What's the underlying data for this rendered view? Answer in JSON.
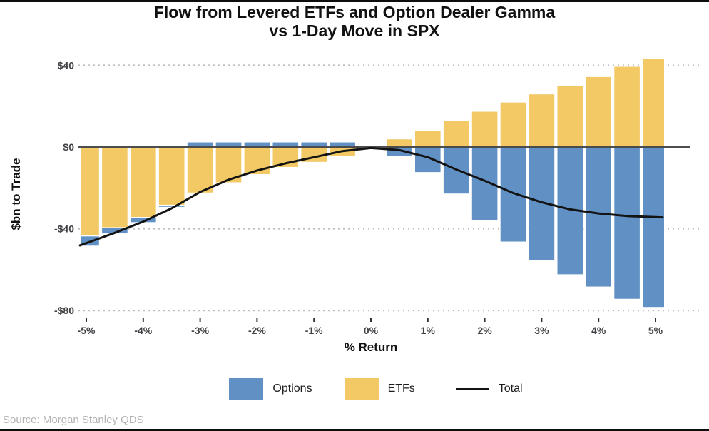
{
  "title": {
    "line1": "Flow from Levered ETFs and Option Dealer Gamma",
    "line2": "vs 1-Day Move in SPX"
  },
  "source": "Source: Morgan Stanley QDS",
  "legend": {
    "options": "Options",
    "etfs": "ETFs",
    "total": "Total"
  },
  "colors": {
    "options_blue": "#6191c4",
    "etfs_yellow": "#f2c964",
    "total_line": "#141414",
    "zero_line": "#3a3a3a",
    "grid_dotted": "#bdbdbd",
    "tick_label": "#434347",
    "source_text": "#b3b3b3"
  },
  "chart_data": {
    "type": "bar",
    "subtype": "stacked bars (Options + ETFs) with overlay line (Total)",
    "title": "Flow from Levered ETFs and Option Dealer Gamma vs 1-Day Move in SPX",
    "xlabel": "% Return",
    "ylabel": "$bn to Trade",
    "x": [
      -5,
      -4.5,
      -4,
      -3.5,
      -3,
      -2.5,
      -2,
      -1.5,
      -1,
      -0.5,
      0,
      0.5,
      1,
      1.5,
      2,
      2.5,
      3,
      3.5,
      4,
      4.5,
      5
    ],
    "series": [
      {
        "name": "Options",
        "style": "bar",
        "values": [
          -5,
          -3,
          -2.5,
          -1,
          2.5,
          2.5,
          2.5,
          2.5,
          2.5,
          2.5,
          0,
          -4.5,
          -12.5,
          -23,
          -36,
          -46.5,
          -55.5,
          -62.5,
          -68.5,
          -74.5,
          -78.5
        ]
      },
      {
        "name": "ETFs",
        "style": "bar",
        "values": [
          -43.5,
          -39.5,
          -34.5,
          -28.5,
          -22.5,
          -17.5,
          -13.5,
          -10,
          -7.5,
          -4.5,
          0,
          4,
          8,
          13,
          17.5,
          22,
          26,
          30,
          34.5,
          39.5,
          43.5
        ]
      },
      {
        "name": "Total",
        "style": "line",
        "values": [
          -47,
          -42,
          -36.5,
          -30,
          -22,
          -16,
          -11.5,
          -8,
          -5,
          -2,
          -0.5,
          -1.5,
          -5,
          -11,
          -16.5,
          -22.5,
          -27,
          -30.5,
          -32.5,
          -33.8,
          -34.3
        ]
      }
    ],
    "xlim": [
      -5.1,
      5.15
    ],
    "ylim": [
      -85,
      45
    ],
    "x_ticks": [
      -5,
      -4,
      -3,
      -2,
      -1,
      0,
      1,
      2,
      3,
      4,
      5
    ],
    "x_tick_labels": [
      "-5%",
      "-4%",
      "-3%",
      "-2%",
      "-1%",
      "0%",
      "1%",
      "2%",
      "3%",
      "4%",
      "5%"
    ],
    "y_ticks": [
      40,
      0,
      -40,
      -80
    ],
    "y_tick_labels": [
      "$40",
      "$0",
      "-$40",
      "-$80"
    ],
    "grid": "horizontal dotted at y ticks, solid dark line at 0",
    "legend_position": "bottom center"
  }
}
